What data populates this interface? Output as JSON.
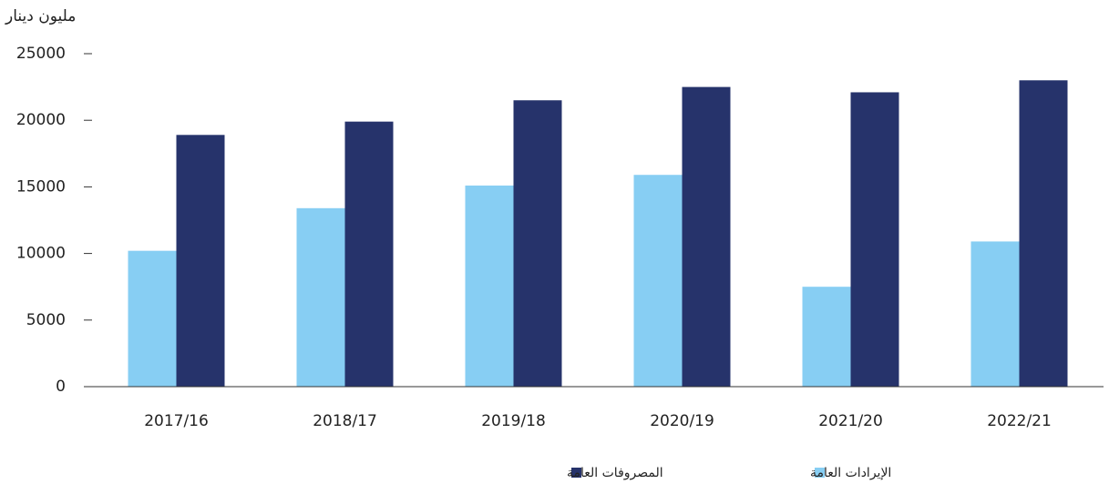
{
  "chart_data": {
    "type": "bar",
    "y_axis_label": "مليون دينار",
    "categories": [
      "2017/16",
      "2018/17",
      "2019/18",
      "2020/19",
      "2021/20",
      "2022/21"
    ],
    "series": [
      {
        "name": "الإيرادات العامة",
        "color": "#87cef3",
        "values": [
          10200,
          13400,
          15100,
          15900,
          7500,
          10900
        ]
      },
      {
        "name": "المصروفات العامة",
        "color": "#26336b",
        "values": [
          18900,
          19900,
          21500,
          22500,
          22100,
          23000
        ]
      }
    ],
    "ylim": [
      0,
      25000
    ],
    "yticks": [
      0,
      5000,
      10000,
      15000,
      20000,
      25000
    ],
    "grid": false
  }
}
